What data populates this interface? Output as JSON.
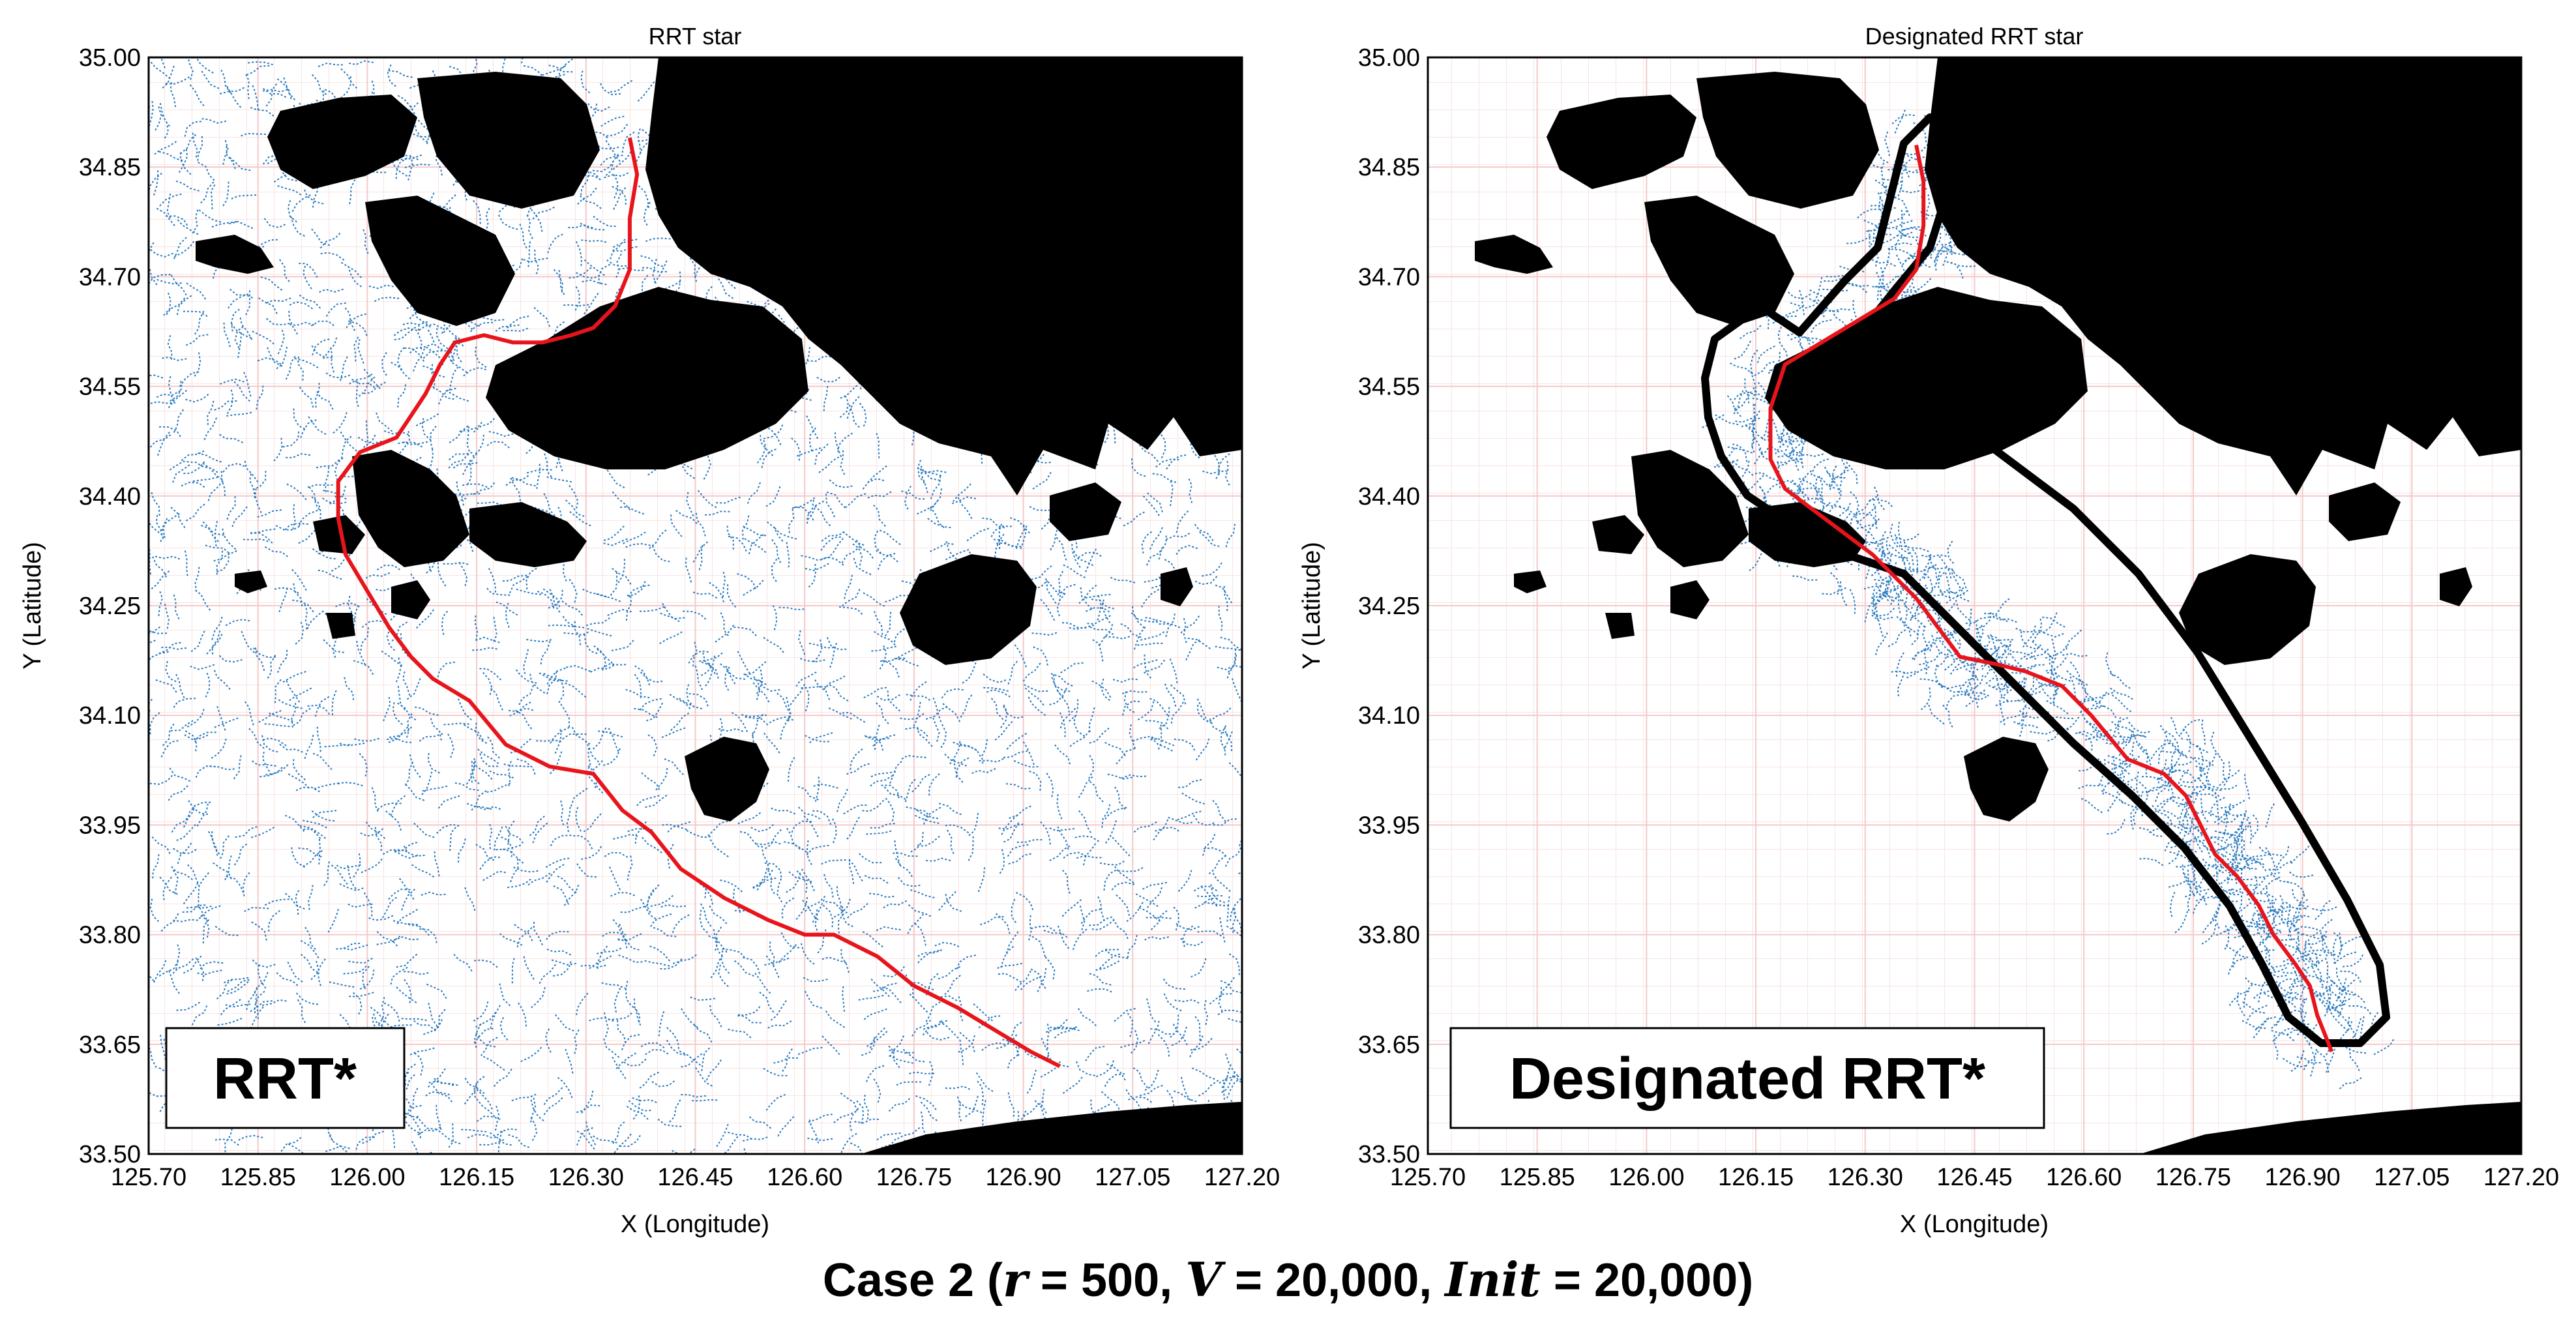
{
  "caption": {
    "case": "Case 2",
    "open": " (",
    "r_sym": "r",
    "r_val": " = 500, ",
    "v_sym": "V",
    "v_val": " = 20,000, ",
    "init_sym": "Init",
    "init_val": " = 20,000)"
  },
  "colors": {
    "tree": "#2b7bbf",
    "path": "#e8141b",
    "obstacle": "#000000",
    "grid": "#f3c9c9"
  },
  "chart_data": [
    {
      "type": "scatter",
      "title": "RRT star",
      "xlabel": "X (Longitude)",
      "ylabel": "Y (Latitude)",
      "xlim": [
        125.7,
        127.2
      ],
      "ylim": [
        33.5,
        35.0
      ],
      "xticks": [
        "125.70",
        "125.85",
        "126.00",
        "126.15",
        "126.30",
        "126.45",
        "126.60",
        "126.75",
        "126.90",
        "127.05",
        "127.20"
      ],
      "yticks": [
        "33.50",
        "33.65",
        "33.80",
        "33.95",
        "34.10",
        "34.25",
        "34.40",
        "34.55",
        "34.70",
        "34.85",
        "35.00"
      ],
      "grid": true,
      "box_label": "RRT*",
      "series": [
        {
          "kind": "path",
          "x": [
            126.36,
            126.37,
            126.36,
            126.36,
            126.34,
            126.31,
            126.28,
            126.24,
            126.2,
            126.16,
            126.12,
            126.1,
            126.08,
            126.06,
            126.04,
            125.99,
            125.96,
            125.96,
            125.97,
            126.0,
            126.03,
            126.06,
            126.09,
            126.14,
            126.19,
            126.25,
            126.31,
            126.35,
            126.39,
            126.43,
            126.49,
            126.55,
            126.6,
            126.64,
            126.7,
            126.75,
            126.81,
            126.86,
            126.91,
            126.95
          ],
          "y": [
            34.89,
            34.84,
            34.78,
            34.71,
            34.66,
            34.63,
            34.62,
            34.61,
            34.61,
            34.62,
            34.61,
            34.58,
            34.54,
            34.51,
            34.48,
            34.46,
            34.42,
            34.37,
            34.32,
            34.27,
            34.22,
            34.18,
            34.15,
            34.12,
            34.06,
            34.03,
            34.02,
            33.97,
            33.94,
            33.89,
            33.85,
            33.82,
            33.8,
            33.8,
            33.77,
            33.73,
            33.7,
            33.67,
            33.64,
            33.62
          ]
        }
      ]
    },
    {
      "type": "scatter",
      "title": "Designated RRT star",
      "xlabel": "X (Longitude)",
      "ylabel": "Y (Latitude)",
      "xlim": [
        125.7,
        127.2
      ],
      "ylim": [
        33.5,
        35.0
      ],
      "xticks": [
        "125.70",
        "125.85",
        "126.00",
        "126.15",
        "126.30",
        "126.45",
        "126.60",
        "126.75",
        "126.90",
        "127.05",
        "127.20"
      ],
      "yticks": [
        "33.50",
        "33.65",
        "33.80",
        "33.95",
        "34.10",
        "34.25",
        "34.40",
        "34.55",
        "34.70",
        "34.85",
        "35.00"
      ],
      "grid": true,
      "box_label": "Designated RRT*",
      "series": [
        {
          "kind": "path",
          "x": [
            126.37,
            126.38,
            126.38,
            126.37,
            126.34,
            126.29,
            126.24,
            126.19,
            126.17,
            126.17,
            126.19,
            126.23,
            126.27,
            126.31,
            126.34,
            126.37,
            126.4,
            126.43,
            126.48,
            126.52,
            126.57,
            126.61,
            126.66,
            126.71,
            126.74,
            126.76,
            126.78,
            126.81,
            126.84,
            126.86,
            126.89,
            126.91,
            126.92,
            126.94
          ],
          "y": [
            34.88,
            34.83,
            34.77,
            34.71,
            34.67,
            34.64,
            34.61,
            34.58,
            34.52,
            34.45,
            34.41,
            34.38,
            34.35,
            34.32,
            34.29,
            34.26,
            34.22,
            34.18,
            34.17,
            34.16,
            34.14,
            34.1,
            34.04,
            34.02,
            33.99,
            33.95,
            33.91,
            33.88,
            33.84,
            33.8,
            33.76,
            33.73,
            33.69,
            33.64
          ]
        }
      ]
    }
  ]
}
